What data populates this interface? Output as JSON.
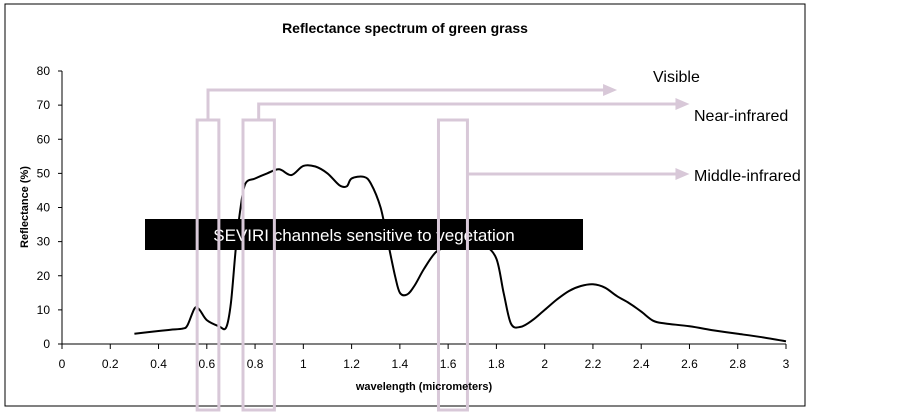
{
  "chart_data": {
    "type": "line",
    "title": "Reflectance spectrum of green grass",
    "xlabel": "wavelength (micrometers)",
    "ylabel": "Reflectance (%)",
    "xlim": [
      0,
      3
    ],
    "ylim": [
      0,
      80
    ],
    "x_ticks": [
      "0",
      "0.2",
      "0.4",
      "0.6",
      "0.8",
      "1",
      "1.2",
      "1.4",
      "1.6",
      "1.8",
      "2",
      "2.2",
      "2.4",
      "2.6",
      "2.8",
      "3"
    ],
    "y_ticks": [
      "0",
      "10",
      "20",
      "30",
      "40",
      "50",
      "60",
      "70",
      "80"
    ],
    "grid": false,
    "legend": "none",
    "line_color": "#000000",
    "series": [
      {
        "x": [
          0.3,
          0.4,
          0.45,
          0.5,
          0.52,
          0.55,
          0.57,
          0.6,
          0.65,
          0.68,
          0.7,
          0.72,
          0.74,
          0.76,
          0.8,
          0.85,
          0.9,
          0.95,
          1.0,
          1.05,
          1.1,
          1.15,
          1.18,
          1.2,
          1.25,
          1.28,
          1.32,
          1.35,
          1.38,
          1.4,
          1.43,
          1.46,
          1.5,
          1.55,
          1.6,
          1.65,
          1.7,
          1.75,
          1.8,
          1.83,
          1.86,
          1.9,
          1.95,
          2.0,
          2.05,
          2.1,
          2.15,
          2.2,
          2.25,
          2.3,
          2.35,
          2.4,
          2.45,
          2.5,
          2.6,
          2.7,
          2.8,
          2.9,
          3.0
        ],
        "values": [
          3,
          3.8,
          4.2,
          4.5,
          5.5,
          10.5,
          10,
          7,
          5.2,
          4.8,
          12,
          28,
          40,
          47,
          48.5,
          50,
          51.2,
          49.5,
          52.2,
          52,
          50,
          46.5,
          46.2,
          48.5,
          49,
          47,
          40,
          30,
          20,
          15,
          14.5,
          17,
          22,
          27,
          28.5,
          30,
          30,
          29,
          25,
          15,
          6,
          5,
          7,
          10,
          13,
          15.5,
          17,
          17.5,
          16.5,
          14,
          12,
          9.5,
          6.8,
          6,
          5.2,
          4,
          3,
          2,
          0.8
        ]
      }
    ],
    "annotations": [
      {
        "text": "Visible",
        "band_x": [
          0.56,
          0.65
        ],
        "arrow_to_x": 2.3
      },
      {
        "text": "Near-infrared",
        "band_x": [
          0.75,
          0.88
        ],
        "arrow_to_x": 2.6
      },
      {
        "text": "Middle-infrared",
        "band_x": [
          1.56,
          1.68
        ],
        "arrow_to_x": 2.6
      }
    ],
    "overlay_label": "SEVIRI channels sensitive to vegetation",
    "band_color": "#d8c8d8",
    "overlay_color": "#000000"
  }
}
